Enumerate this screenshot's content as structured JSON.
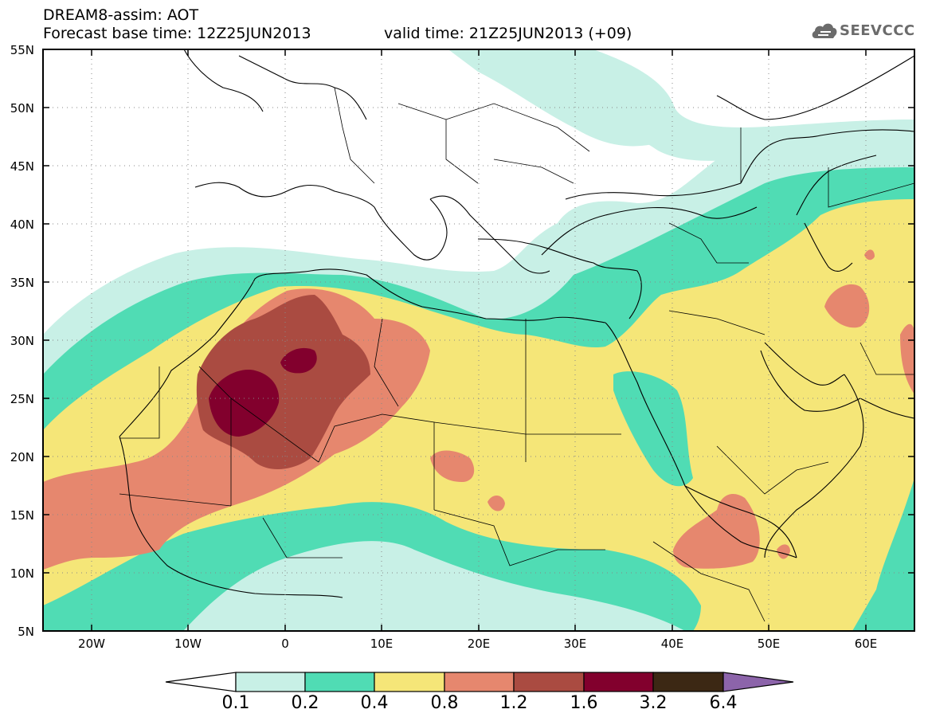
{
  "title": {
    "line1": "DREAM8-assim: AOT",
    "line2": "Forecast base time: 12Z25JUN2013",
    "valid": "valid time: 21Z25JUN2013 (+09)"
  },
  "logo": {
    "text": "SEEVCCC",
    "icon": "cloud-icon"
  },
  "map": {
    "lon_range": [
      -25,
      65
    ],
    "lat_range": [
      5,
      55
    ],
    "lat_labels": [
      "55N",
      "50N",
      "45N",
      "40N",
      "35N",
      "30N",
      "25N",
      "20N",
      "15N",
      "10N",
      "5N"
    ],
    "lon_labels": [
      "20W",
      "10W",
      "0",
      "10E",
      "20E",
      "30E",
      "40E",
      "50E",
      "60E"
    ],
    "grid": "dotted"
  },
  "colorbar": {
    "labels": [
      "0.1",
      "0.2",
      "0.4",
      "0.8",
      "1.2",
      "1.6",
      "3.2",
      "6.4"
    ],
    "colors": {
      "lt01": "#ffffff",
      "c01": "#c8f0e6",
      "c02": "#50dcb4",
      "c04": "#f5e678",
      "c08": "#e6876e",
      "c12": "#aa4b41",
      "c16": "#82002d",
      "c32": "#3c2814",
      "gt64": "#8c64aa"
    }
  }
}
